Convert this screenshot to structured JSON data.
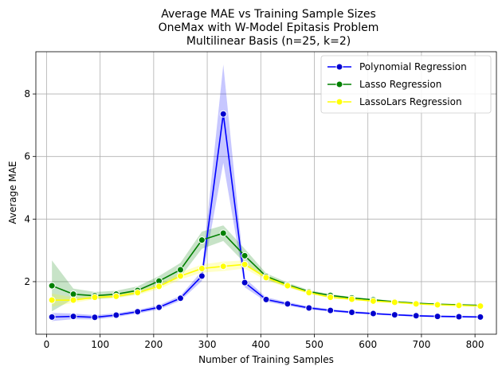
{
  "chart_data": {
    "type": "line",
    "title_lines": [
      "Average MAE vs Training Sample Sizes",
      "OneMax with W-Model Epitasis Problem",
      "Multilinear Basis (n=25, k=2)"
    ],
    "xlabel": "Number of Training Samples",
    "ylabel": "Average MAE",
    "xlim": [
      -20,
      840
    ],
    "ylim": [
      0.32,
      9.35
    ],
    "xticks": [
      0,
      100,
      200,
      300,
      400,
      500,
      600,
      700,
      800
    ],
    "yticks": [
      2,
      4,
      6,
      8
    ],
    "grid": true,
    "legend_position": "top-right",
    "x": [
      10,
      50,
      90,
      130,
      170,
      210,
      250,
      290,
      330,
      370,
      410,
      450,
      490,
      530,
      570,
      610,
      650,
      690,
      730,
      770,
      810
    ],
    "series": [
      {
        "name": "Polynomial Regression",
        "color": "#0000ff",
        "marker_color": "#0000cd",
        "values": [
          0.87,
          0.89,
          0.86,
          0.93,
          1.04,
          1.18,
          1.47,
          2.18,
          7.36,
          1.97,
          1.43,
          1.29,
          1.16,
          1.08,
          1.02,
          0.98,
          0.94,
          0.91,
          0.89,
          0.88,
          0.87
        ],
        "lower": [
          0.74,
          0.8,
          0.79,
          0.87,
          0.98,
          1.11,
          1.39,
          2.02,
          5.8,
          1.82,
          1.36,
          1.23,
          1.11,
          1.04,
          0.98,
          0.95,
          0.91,
          0.88,
          0.86,
          0.85,
          0.84
        ],
        "upper": [
          1.0,
          0.98,
          0.93,
          0.99,
          1.1,
          1.25,
          1.55,
          2.34,
          8.94,
          2.12,
          1.5,
          1.35,
          1.21,
          1.12,
          1.06,
          1.01,
          0.97,
          0.94,
          0.92,
          0.91,
          0.9
        ]
      },
      {
        "name": "Lasso Regression",
        "color": "#008000",
        "marker_color": "#008000",
        "values": [
          1.87,
          1.6,
          1.55,
          1.6,
          1.72,
          2.02,
          2.38,
          3.33,
          3.55,
          2.83,
          2.17,
          1.9,
          1.68,
          1.56,
          1.48,
          1.42,
          1.36,
          1.31,
          1.28,
          1.26,
          1.24
        ],
        "lower": [
          1.05,
          1.45,
          1.44,
          1.5,
          1.6,
          1.86,
          2.15,
          3.05,
          3.3,
          2.6,
          2.07,
          1.83,
          1.63,
          1.52,
          1.45,
          1.39,
          1.34,
          1.29,
          1.26,
          1.24,
          1.22
        ],
        "upper": [
          2.68,
          1.78,
          1.67,
          1.71,
          1.85,
          2.18,
          2.6,
          3.6,
          3.8,
          3.05,
          2.27,
          1.97,
          1.73,
          1.6,
          1.51,
          1.45,
          1.38,
          1.33,
          1.3,
          1.28,
          1.26
        ]
      },
      {
        "name": "LassoLars Regression",
        "color": "#ffff00",
        "marker_color": "#ffff00",
        "values": [
          1.41,
          1.41,
          1.5,
          1.53,
          1.65,
          1.85,
          2.18,
          2.42,
          2.49,
          2.55,
          2.13,
          1.87,
          1.65,
          1.5,
          1.44,
          1.38,
          1.34,
          1.29,
          1.26,
          1.24,
          1.22
        ],
        "lower": [
          1.2,
          1.32,
          1.44,
          1.47,
          1.58,
          1.76,
          2.07,
          2.29,
          2.34,
          2.42,
          2.04,
          1.81,
          1.61,
          1.47,
          1.41,
          1.35,
          1.32,
          1.27,
          1.24,
          1.22,
          1.2
        ],
        "upper": [
          1.62,
          1.5,
          1.56,
          1.59,
          1.72,
          1.94,
          2.29,
          2.55,
          2.64,
          2.68,
          2.22,
          1.93,
          1.69,
          1.53,
          1.47,
          1.41,
          1.36,
          1.31,
          1.28,
          1.26,
          1.24
        ]
      }
    ]
  }
}
